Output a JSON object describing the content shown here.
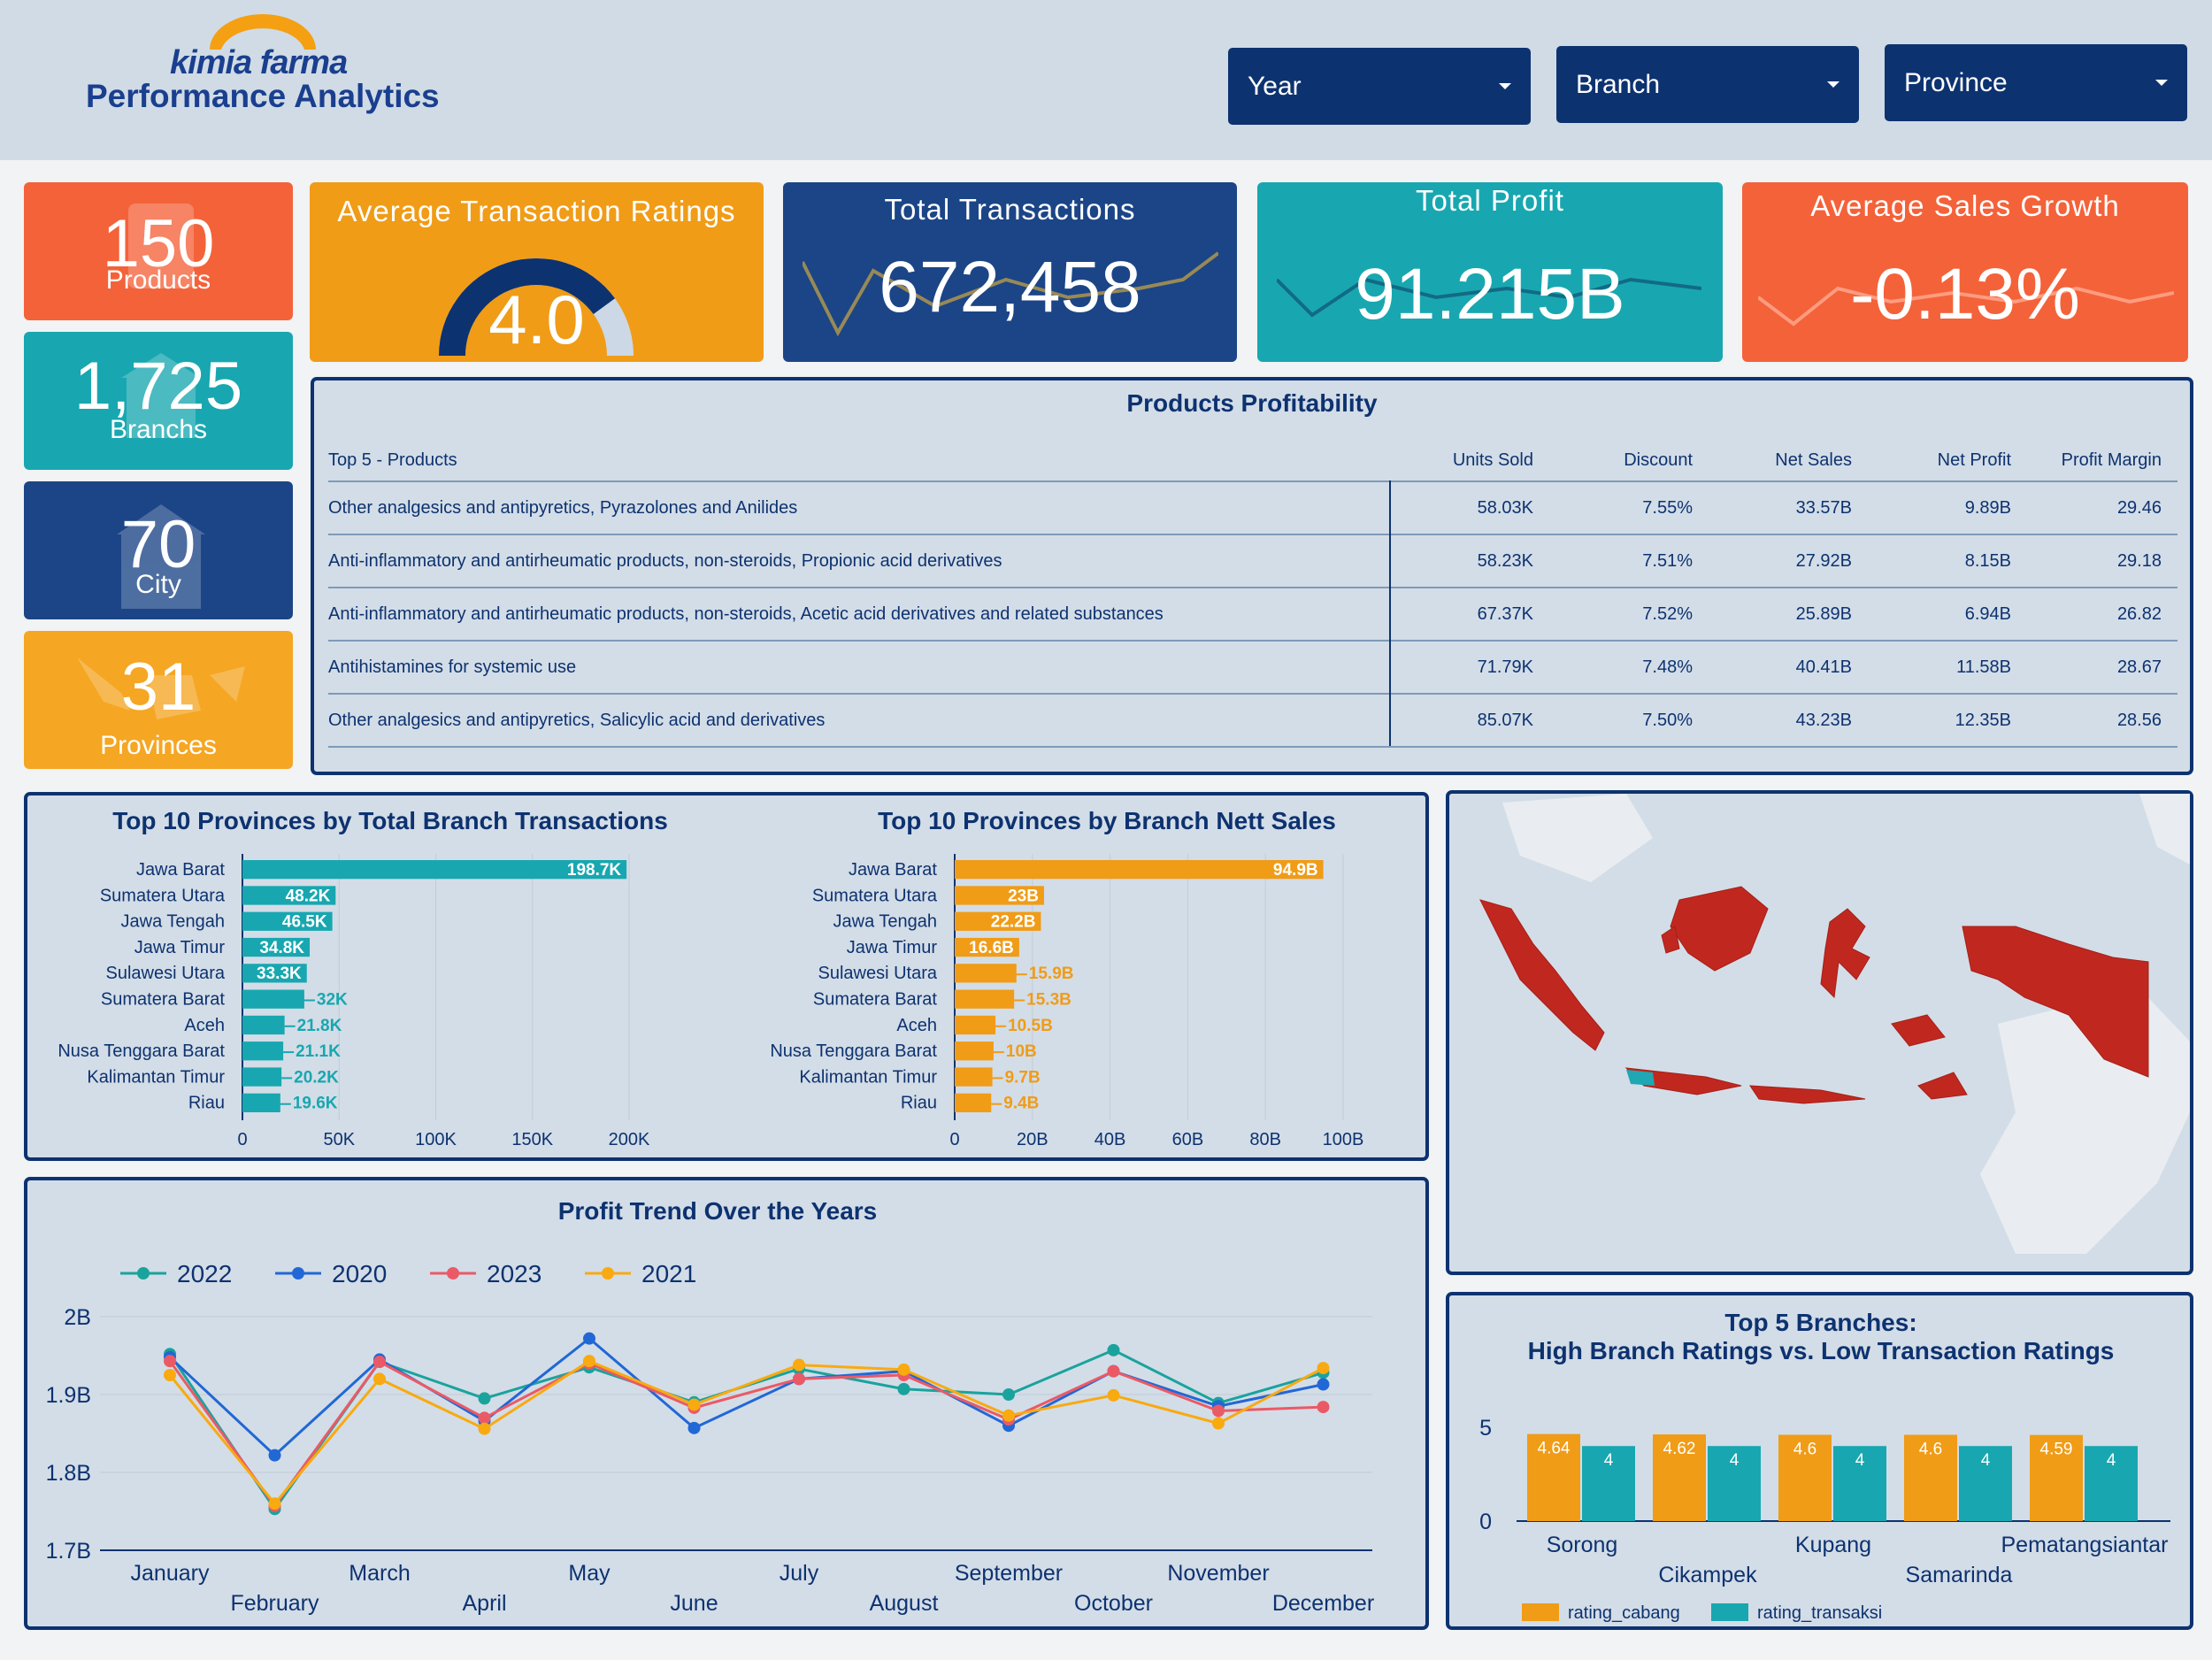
{
  "header": {
    "brand": "kimia farma",
    "subtitle": "Performance Analytics",
    "filters": [
      "Year",
      "Branch",
      "Province"
    ]
  },
  "summary": {
    "products": {
      "value": "150",
      "label": "Products"
    },
    "branches": {
      "value": "1,725",
      "label": "Branchs"
    },
    "city": {
      "value": "70",
      "label": "City"
    },
    "provinces": {
      "value": "31",
      "label": "Provinces"
    }
  },
  "kpis": {
    "rating": {
      "title": "Average Transaction Ratings",
      "value": "4.0",
      "gauge_fraction": 0.8
    },
    "transactions": {
      "title": "Total Transactions",
      "value": "672,458"
    },
    "profit": {
      "title": "Total Profit",
      "value": "91.215B"
    },
    "growth": {
      "title": "Average Sales Growth",
      "value": "-0.13%"
    }
  },
  "colors": {
    "navy": "#0d3270",
    "orange_red": "#f4623a",
    "teal": "#18a7b0",
    "orange": "#f09c17",
    "amber": "#f5a623",
    "map_fill": "#c0281f",
    "map_highlight": "#1fa7b3"
  },
  "products_table": {
    "title": "Products Profitability",
    "headers": [
      "Top 5 - Products",
      "Units Sold",
      "Discount",
      "Net Sales",
      "Net Profit",
      "Profit Margin"
    ],
    "rows": [
      [
        "Other analgesics and antipyretics, Pyrazolones and Anilides",
        "58.03K",
        "7.55%",
        "33.57B",
        "9.89B",
        "29.46"
      ],
      [
        "Anti-inflammatory and antirheumatic products, non-steroids, Propionic acid derivatives",
        "58.23K",
        "7.51%",
        "27.92B",
        "8.15B",
        "29.18"
      ],
      [
        "Anti-inflammatory and antirheumatic products, non-steroids, Acetic acid derivatives and related substances",
        "67.37K",
        "7.52%",
        "25.89B",
        "6.94B",
        "26.82"
      ],
      [
        "Antihistamines for systemic use",
        "71.79K",
        "7.48%",
        "40.41B",
        "11.58B",
        "28.67"
      ],
      [
        "Other analgesics and antipyretics, Salicylic acid and derivatives",
        "85.07K",
        "7.50%",
        "43.23B",
        "12.35B",
        "28.56"
      ]
    ]
  },
  "chart_data": [
    {
      "type": "bar",
      "orientation": "horizontal",
      "title": "Top 10 Provinces by Total Branch Transactions",
      "categories": [
        "Jawa Barat",
        "Sumatera Utara",
        "Jawa Tengah",
        "Jawa Timur",
        "Sulawesi Utara",
        "Sumatera Barat",
        "Aceh",
        "Nusa Tenggara Barat",
        "Kalimantan Timur",
        "Riau"
      ],
      "values": [
        198700,
        48200,
        46500,
        34800,
        33300,
        32000,
        21800,
        21100,
        20200,
        19600
      ],
      "labels": [
        "198.7K",
        "48.2K",
        "46.5K",
        "34.8K",
        "33.3K",
        "32K",
        "21.8K",
        "21.1K",
        "20.2K",
        "19.6K"
      ],
      "ticks": [
        "0",
        "50K",
        "100K",
        "150K",
        "200K"
      ],
      "xlim": [
        0,
        200000
      ],
      "grid": true,
      "color": "#18a7b0"
    },
    {
      "type": "bar",
      "orientation": "horizontal",
      "title": "Top 10 Provinces by Branch Nett Sales",
      "categories": [
        "Jawa Barat",
        "Sumatera Utara",
        "Jawa Tengah",
        "Jawa Timur",
        "Sulawesi Utara",
        "Sumatera Barat",
        "Aceh",
        "Nusa Tenggara Barat",
        "Kalimantan Timur",
        "Riau"
      ],
      "values": [
        94.9,
        23,
        22.2,
        16.6,
        15.9,
        15.3,
        10.5,
        10,
        9.7,
        9.4
      ],
      "labels": [
        "94.9B",
        "23B",
        "22.2B",
        "16.6B",
        "15.9B",
        "15.3B",
        "10.5B",
        "10B",
        "9.7B",
        "9.4B"
      ],
      "ticks": [
        "0",
        "20B",
        "40B",
        "60B",
        "80B",
        "100B"
      ],
      "xlim": [
        0,
        100
      ],
      "grid": true,
      "color": "#f09c17"
    },
    {
      "type": "line",
      "title": "Profit Trend Over the Years",
      "x": [
        "January",
        "February",
        "March",
        "April",
        "May",
        "June",
        "July",
        "August",
        "September",
        "October",
        "November",
        "December"
      ],
      "ylim": [
        1.7,
        2.0
      ],
      "yticks": [
        "1.7B",
        "1.8B",
        "1.9B",
        "2B"
      ],
      "legend": "top-left",
      "series": [
        {
          "name": "2022",
          "color": "#1aa39d",
          "values": [
            1.952,
            1.753,
            1.942,
            1.895,
            1.935,
            1.89,
            1.933,
            1.907,
            1.9,
            1.957,
            1.889,
            1.928
          ]
        },
        {
          "name": "2020",
          "color": "#2167d6",
          "values": [
            1.948,
            1.822,
            1.945,
            1.866,
            1.972,
            1.857,
            1.92,
            1.93,
            1.86,
            1.93,
            1.885,
            1.913
          ]
        },
        {
          "name": "2023",
          "color": "#ea5a66",
          "values": [
            1.943,
            1.757,
            1.942,
            1.87,
            1.94,
            1.883,
            1.92,
            1.925,
            1.868,
            1.93,
            1.879,
            1.884
          ]
        },
        {
          "name": "2021",
          "color": "#f8aa10",
          "values": [
            1.925,
            1.76,
            1.92,
            1.856,
            1.943,
            1.887,
            1.938,
            1.932,
            1.873,
            1.899,
            1.863,
            1.934
          ]
        }
      ]
    },
    {
      "type": "bar",
      "title": "Top 5 Branches:\nHigh Branch Ratings vs. Low Transaction Ratings",
      "categories": [
        "Sorong",
        "Cikampek",
        "Kupang",
        "Samarinda",
        "Pematangsiantar"
      ],
      "ylim": [
        0,
        5
      ],
      "yticks": [
        "0",
        "5"
      ],
      "legend": "bottom-left",
      "series": [
        {
          "name": "rating_cabang",
          "color": "#f09c17",
          "values": [
            4.64,
            4.62,
            4.6,
            4.6,
            4.59
          ]
        },
        {
          "name": "rating_transaksi",
          "color": "#18a7b0",
          "values": [
            4,
            4,
            4,
            4,
            4
          ]
        }
      ]
    }
  ]
}
